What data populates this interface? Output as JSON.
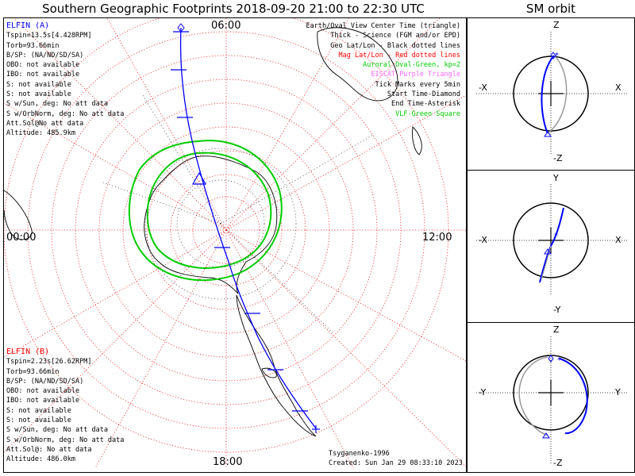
{
  "header": {
    "title": "Southern Geographic Footprints 2018-09-20 21:00 to 22:30 UTC",
    "sm_title": "SM orbit"
  },
  "map": {
    "hour_top": "06:00",
    "hour_left": "00:00",
    "hour_right": "12:00",
    "hour_bottom": "18:00",
    "colors": {
      "grid_geo": "#000000",
      "grid_mag": "#ff0000",
      "oval": "#00cc00",
      "track": "#0000ff"
    }
  },
  "elfin_a": {
    "name": "ELFIN (A)",
    "color": "#0000ff",
    "lines": [
      "Tspin=13.5s[4.428RPM]",
      "Torb=93.66min",
      "B/SP: (NA/ND/SD/SA)",
      "OBO: not available",
      "IBO: not available",
      "S: not available",
      "S: not available",
      "S w/Sun, deg: No att data",
      "S w/OrbNorm, deg: No att data",
      "Att.Sol@No att data",
      "Altitude: 485.9km"
    ]
  },
  "elfin_b": {
    "name": "ELFIN (B)",
    "color": "#ff0000",
    "lines": [
      "Tspin=2.23s[26.62RPM]",
      "Torb=93.66min",
      "B/SP: (NA/ND/SD/SA)",
      "OBO: not available",
      "IBO: not available",
      "S: not available",
      "S: not available",
      "S w/Sun, deg: No att data",
      "S w/OrbNorm, deg: No att data",
      "Att.Sol@: No att data",
      "Altitude: 486.0km"
    ]
  },
  "legend": [
    {
      "text": "Earth/Oval View Center Time (triangle)",
      "color": "#000000"
    },
    {
      "text": "Thick - Science (FGM and/or EPD)",
      "color": "#000000"
    },
    {
      "text": "Geo Lat/Lon - Black dotted lines",
      "color": "#000000"
    },
    {
      "text": "Mag Lat/Lon - Red dotted lines",
      "color": "#ff0000"
    },
    {
      "text": "Auroral Oval-Green, kp=2",
      "color": "#00cc00"
    },
    {
      "text": "EISCAT-Purple Triangle",
      "color": "#ff66ff"
    },
    {
      "text": "Tick Marks every 5min",
      "color": "#000000"
    },
    {
      "text": "Start Time-Diamond",
      "color": "#000000"
    },
    {
      "text": "End Time-Asterisk",
      "color": "#000000"
    },
    {
      "text": "VLF-Green Square",
      "color": "#00cc00"
    }
  ],
  "footer": {
    "model": "Tsyganenko-1996",
    "created": "Created: Sun Jan 29 08:33:10 2023"
  },
  "sm_panels": [
    {
      "top": "Z",
      "bottom": "-Z",
      "left": "-X",
      "right": "X"
    },
    {
      "top": "Y",
      "bottom": "-Y",
      "left": "-X",
      "right": "X"
    },
    {
      "top": "Z",
      "bottom": "-Z",
      "left": "-Y",
      "right": "Y"
    }
  ]
}
